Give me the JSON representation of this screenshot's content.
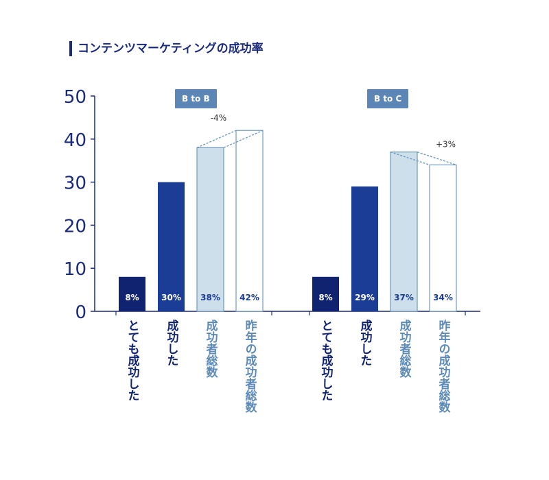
{
  "title": "コンテンツマーケティングの成功率",
  "colors": {
    "title": "#1a2a7c",
    "axis": "#1a2a7c",
    "dark_navy": "#0f2370",
    "blue": "#1b3d96",
    "light": "#cddfea",
    "outline": "#6f99c0",
    "light_text": "#5b8ab8",
    "badge": "#5b86b5"
  },
  "chart_data": {
    "type": "bar",
    "ylim": [
      0,
      50
    ],
    "yticks": [
      0,
      10,
      20,
      30,
      40,
      50
    ],
    "grid": false,
    "panels": [
      {
        "name": "B to B",
        "change_label": "-4%",
        "categories": [
          "とても成功した",
          "成功した",
          "成功者総数",
          "昨年の成功者総数"
        ],
        "values": [
          8,
          30,
          38,
          42
        ],
        "data_labels": [
          "8%",
          "30%",
          "38%",
          "42%"
        ]
      },
      {
        "name": "B to C",
        "change_label": "+3%",
        "categories": [
          "とても成功した",
          "成功した",
          "成功者総数",
          "昨年の成功者総数"
        ],
        "values": [
          8,
          29,
          37,
          34
        ],
        "data_labels": [
          "8%",
          "29%",
          "37%",
          "34%"
        ]
      }
    ]
  }
}
